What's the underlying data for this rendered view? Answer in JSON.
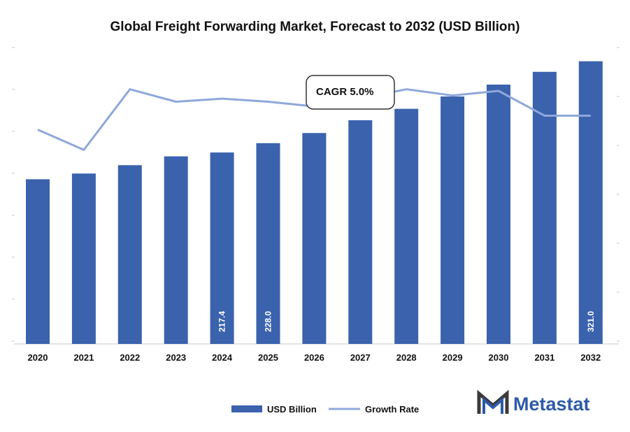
{
  "chart_data": {
    "type": "bar",
    "title": "Global Freight Forwarding Market, Forecast to 2032 (USD Billion)",
    "categories": [
      "2020",
      "2021",
      "2022",
      "2023",
      "2024",
      "2025",
      "2026",
      "2027",
      "2028",
      "2029",
      "2030",
      "2031",
      "2032"
    ],
    "series": [
      {
        "name": "USD Billion",
        "type": "bar",
        "color": "#3a62ad",
        "values": [
          187.0,
          193.5,
          203.0,
          213.0,
          217.4,
          228.0,
          239.5,
          254.0,
          267.0,
          281.0,
          294.5,
          309.0,
          321.0
        ]
      },
      {
        "name": "Growth Rate",
        "type": "line",
        "color": "#8fa7db",
        "values": [
          4.8,
          3.5,
          7.4,
          6.6,
          6.8,
          6.6,
          6.3,
          6.8,
          7.4,
          7.0,
          7.3,
          5.7,
          5.7
        ]
      }
    ],
    "data_labels": [
      {
        "category": "2024",
        "text": "217.4"
      },
      {
        "category": "2025",
        "text": "228.0"
      },
      {
        "category": "2032",
        "text": "321.0"
      }
    ],
    "annotation": {
      "text": "CAGR 5.0%"
    },
    "ylim": [
      0,
      335
    ],
    "y2lim": [
      -9,
      10
    ],
    "legend_position": "bottom",
    "grid": false
  },
  "brand": {
    "name": "Metastat",
    "logo_icon": "metastat-m-logo-icon"
  }
}
